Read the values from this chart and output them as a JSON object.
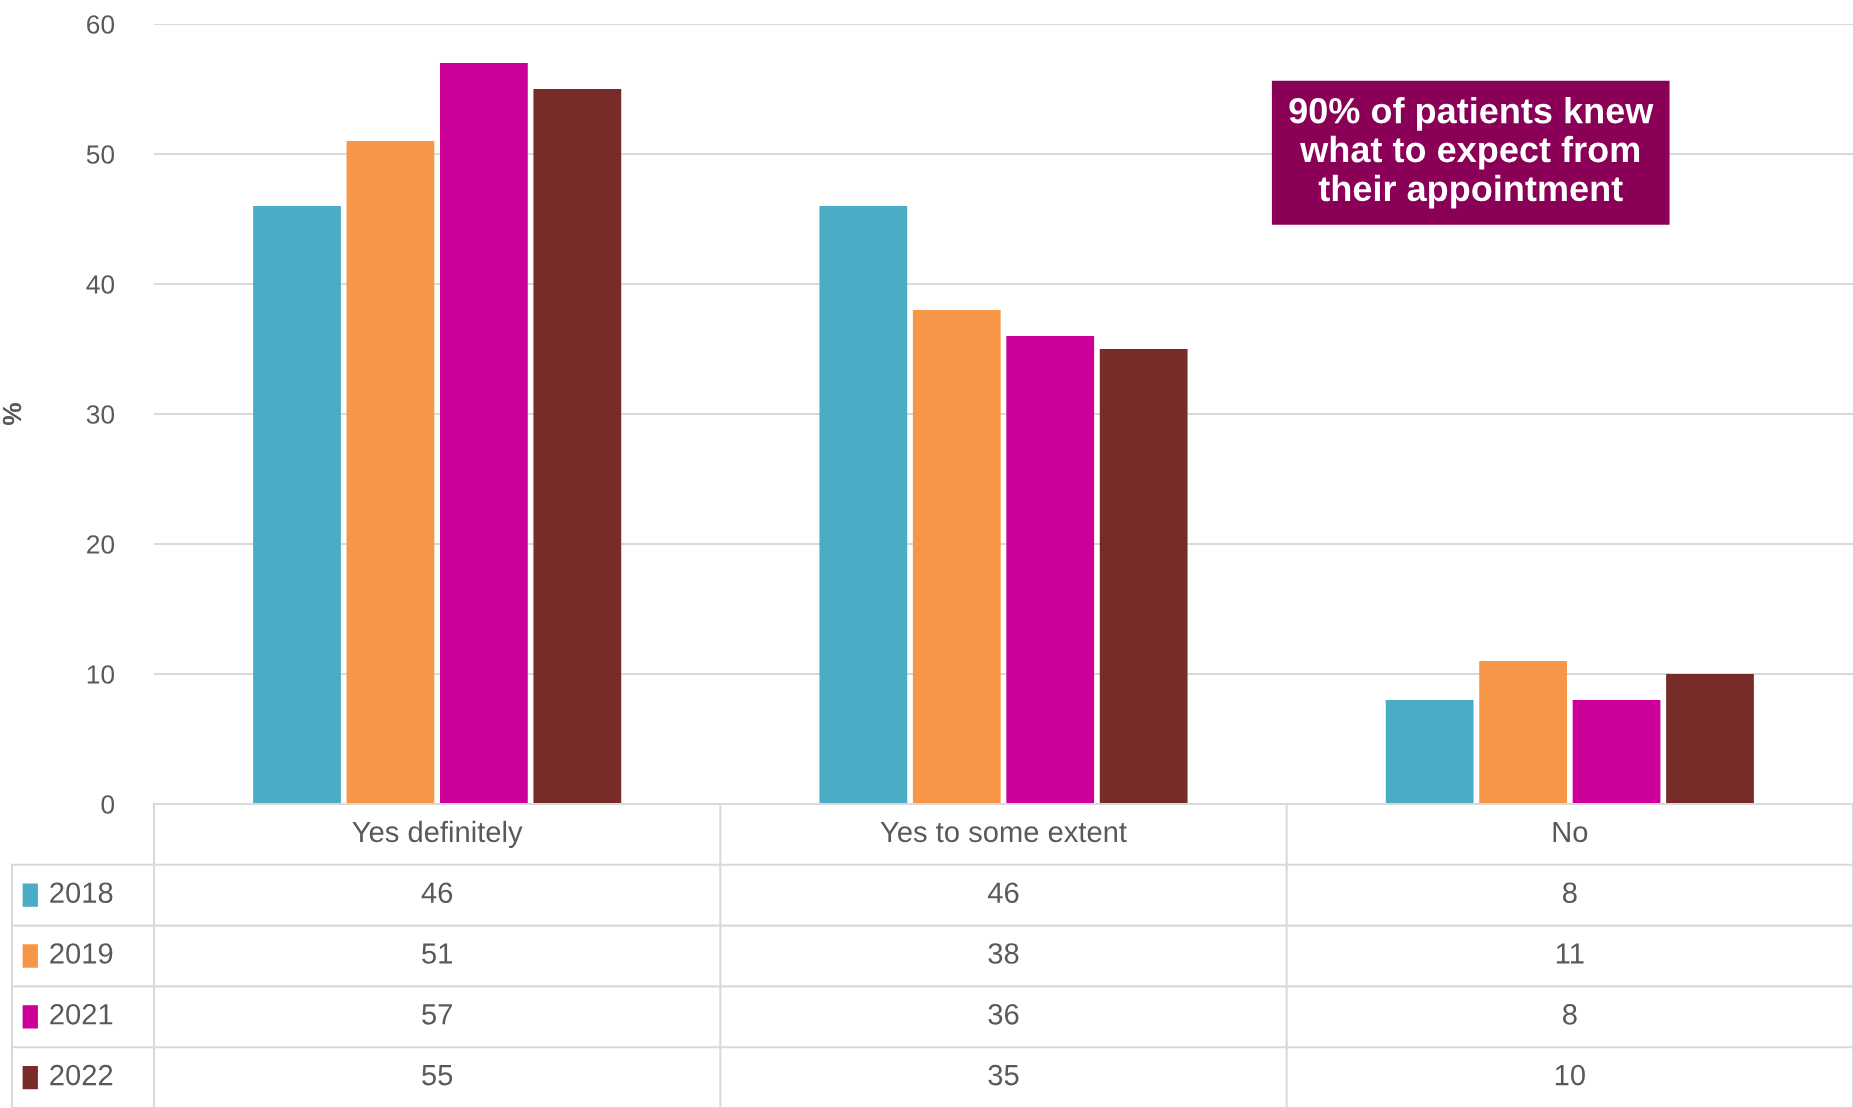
{
  "chart_data": {
    "type": "bar",
    "ylabel": "%",
    "categories": [
      "Yes definitely",
      "Yes to some extent",
      "No"
    ],
    "series": [
      {
        "name": "2018",
        "color": "#4bacc6",
        "values": [
          46,
          46,
          8
        ]
      },
      {
        "name": "2019",
        "color": "#f79646",
        "values": [
          51,
          38,
          11
        ]
      },
      {
        "name": "2021",
        "color": "#cc0099",
        "values": [
          57,
          36,
          8
        ]
      },
      {
        "name": "2022",
        "color": "#772c2a",
        "values": [
          55,
          35,
          10
        ]
      }
    ],
    "ylim": [
      0,
      60
    ],
    "yticks": [
      0,
      10,
      20,
      30,
      40,
      50,
      60
    ],
    "grid": "y",
    "data_labels": true,
    "legend": "bottom left",
    "annotations": [
      "90% of patients knew\nwhat to expect from\ntheir appointment"
    ]
  }
}
